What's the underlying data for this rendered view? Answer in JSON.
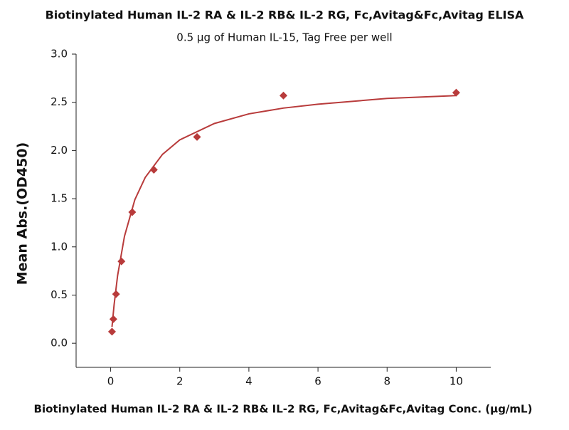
{
  "chart_data": {
    "type": "scatter",
    "title": "Biotinylated Human IL-2 RA & IL-2 RB& IL-2 RG, Fc,Avitag&Fc,Avitag ELISA",
    "subtitle": "0.5 μg of Human IL-15, Tag Free per well",
    "x_label": "Biotinylated Human IL-2 RA & IL-2 RB& IL-2 RG, Fc,Avitag&Fc,Avitag Conc. (μg/mL)",
    "y_label": "Mean Abs.(OD450)",
    "xlim": [
      -1,
      11
    ],
    "ylim": [
      -0.25,
      3.0
    ],
    "xticks": [
      0,
      2,
      4,
      6,
      8,
      10
    ],
    "yticks": [
      {
        "value": 0,
        "label": "0.0"
      },
      0.5,
      {
        "value": 1,
        "label": "1.0"
      },
      1.5,
      {
        "value": 2,
        "label": "2.0"
      },
      2.5,
      {
        "value": 3,
        "label": "3.0"
      }
    ],
    "series": [
      {
        "type": "scatter",
        "color": "#b83b3b",
        "x": [
          0.039,
          0.078,
          0.156,
          0.3125,
          0.625,
          1.25,
          2.5,
          5,
          10
        ],
        "values": [
          0.12,
          0.25,
          0.51,
          0.85,
          1.36,
          1.8,
          2.14,
          2.57,
          2.6
        ]
      },
      {
        "type": "line",
        "color": "#b83b3b",
        "x": [
          0.039,
          0.1,
          0.2,
          0.4,
          0.7,
          1,
          1.5,
          2,
          3,
          4,
          5,
          6,
          8,
          10
        ],
        "values": [
          0.17,
          0.4,
          0.7,
          1.11,
          1.49,
          1.72,
          1.96,
          2.11,
          2.28,
          2.38,
          2.44,
          2.48,
          2.54,
          2.57
        ]
      }
    ]
  }
}
